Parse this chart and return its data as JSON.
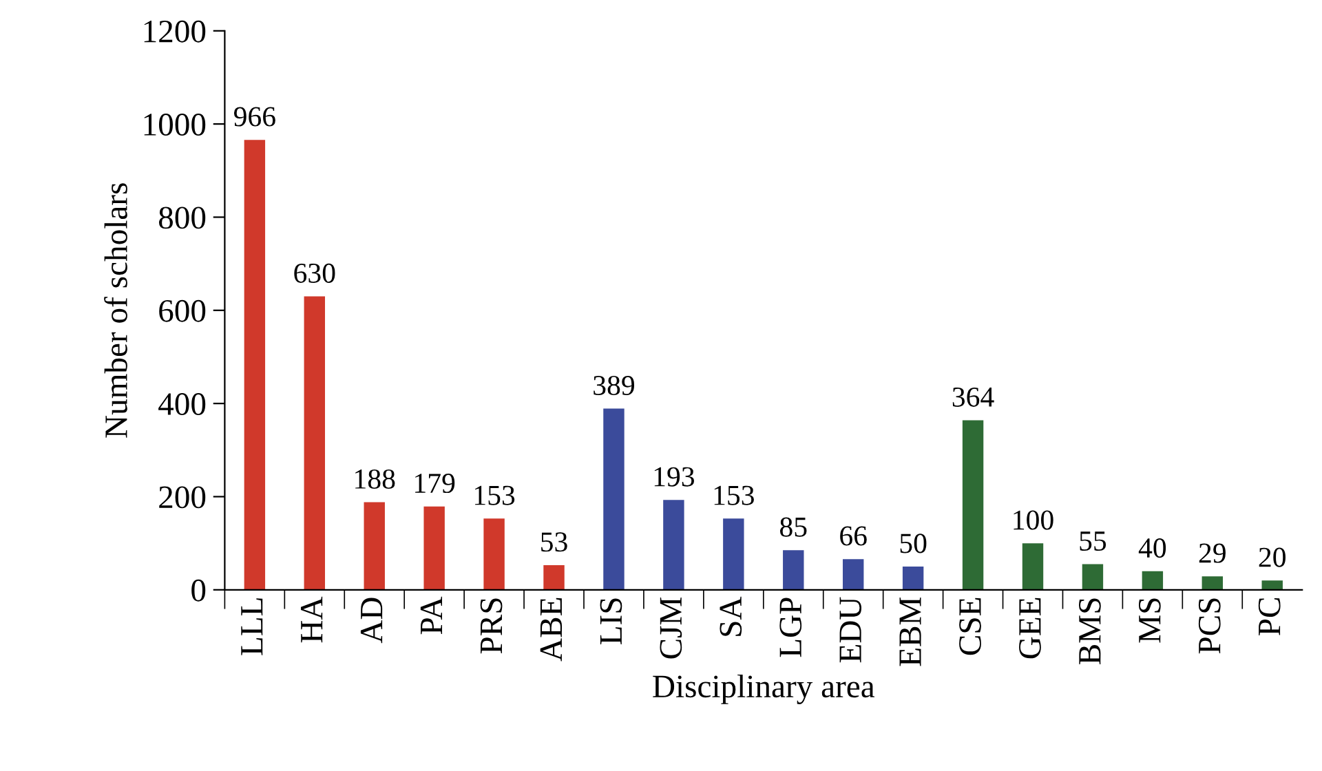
{
  "chart_data": {
    "type": "bar",
    "xlabel": "Disciplinary area",
    "ylabel": "Number of scholars",
    "categories": [
      "LLL",
      "HA",
      "AD",
      "PA",
      "PRS",
      "ABE",
      "LIS",
      "CJM",
      "SA",
      "LGP",
      "EDU",
      "EBM",
      "CSE",
      "GEE",
      "BMS",
      "MS",
      "PCS",
      "PC"
    ],
    "values": [
      966,
      630,
      188,
      179,
      153,
      53,
      389,
      193,
      153,
      85,
      66,
      50,
      364,
      100,
      55,
      40,
      29,
      20
    ],
    "colors": [
      "#d0392b",
      "#d0392b",
      "#d0392b",
      "#d0392b",
      "#d0392b",
      "#d0392b",
      "#3b4b9b",
      "#3b4b9b",
      "#3b4b9b",
      "#3b4b9b",
      "#3b4b9b",
      "#3b4b9b",
      "#2e6b35",
      "#2e6b35",
      "#2e6b35",
      "#2e6b35",
      "#2e6b35",
      "#2e6b35"
    ],
    "ylim": [
      0,
      1200
    ],
    "yticks": [
      0,
      200,
      400,
      600,
      800,
      1000,
      1200
    ],
    "data_labels": true,
    "grid": false,
    "legend": false
  }
}
